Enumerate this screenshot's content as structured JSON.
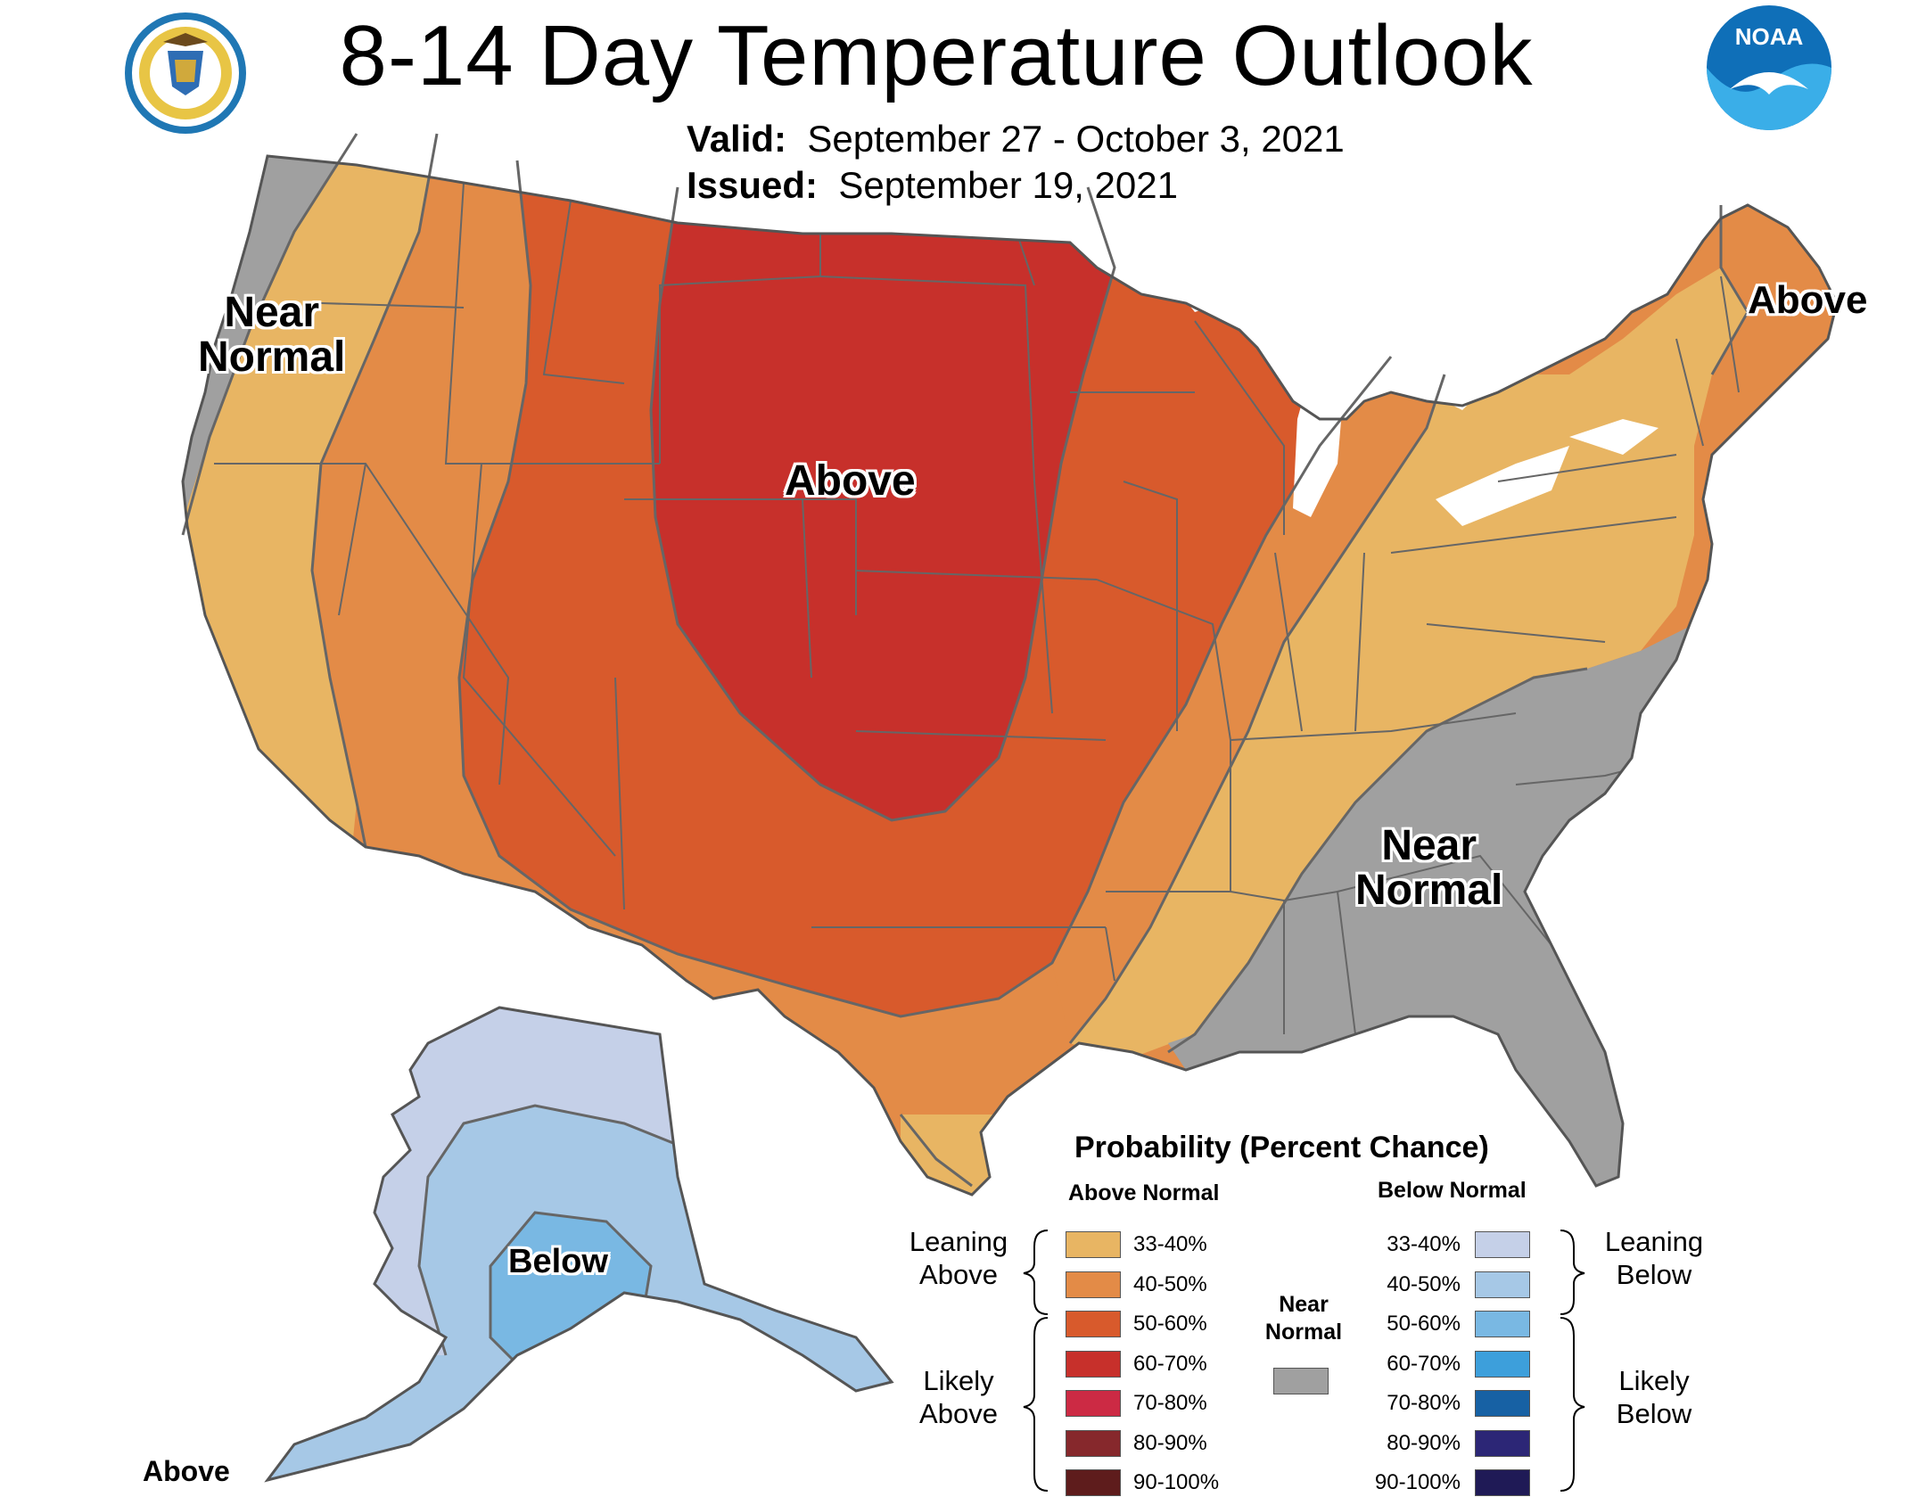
{
  "title": "8-14 Day Temperature Outlook",
  "valid_label": "Valid:",
  "valid_dates": "September 27 - October 3, 2021",
  "issued_label": "Issued:",
  "issued_date": "September 19, 2021",
  "logos": {
    "left": "Department of Commerce seal",
    "left_text": "DEPARTMENT OF COMMERCE • UNITED STATES OF AMERICA",
    "right": "NOAA logo",
    "right_text": "NOAA"
  },
  "regions": {
    "west_coast": "Near\nNormal",
    "central": "Above",
    "northeast": "Above",
    "southeast": "Near\nNormal",
    "alaska": "Below",
    "aleutians": "Above"
  },
  "colors": {
    "above_33_40": "#e8b563",
    "above_40_50": "#e38b47",
    "above_50_60": "#d85a2c",
    "above_60_70": "#c7302b",
    "above_70_80": "#cc2a44",
    "above_80_90": "#86282c",
    "above_90_100": "#5e1c1c",
    "near_normal": "#a0a0a0",
    "below_33_40": "#c5d0e8",
    "below_40_50": "#a6c8e6",
    "below_50_60": "#79b8e3",
    "below_60_70": "#3d9fdb",
    "below_70_80": "#1761a4",
    "below_80_90": "#2c2676",
    "below_90_100": "#1f1a56",
    "boundary": "#666666"
  },
  "legend": {
    "title": "Probability (Percent Chance)",
    "above_header": "Above Normal",
    "below_header": "Below Normal",
    "near_normal": "Near\nNormal",
    "leaning_above": "Leaning\nAbove",
    "likely_above": "Likely\nAbove",
    "leaning_below": "Leaning\nBelow",
    "likely_below": "Likely\nBelow",
    "above_rows": [
      {
        "label": "33-40%",
        "color": "#e8b563"
      },
      {
        "label": "40-50%",
        "color": "#e38b47"
      },
      {
        "label": "50-60%",
        "color": "#d85a2c"
      },
      {
        "label": "60-70%",
        "color": "#c7302b"
      },
      {
        "label": "70-80%",
        "color": "#cc2a44"
      },
      {
        "label": "80-90%",
        "color": "#86282c"
      },
      {
        "label": "90-100%",
        "color": "#5e1c1c"
      }
    ],
    "below_rows": [
      {
        "label": "33-40%",
        "color": "#c5d0e8"
      },
      {
        "label": "40-50%",
        "color": "#a6c8e6"
      },
      {
        "label": "50-60%",
        "color": "#79b8e3"
      },
      {
        "label": "60-70%",
        "color": "#3d9fdb"
      },
      {
        "label": "70-80%",
        "color": "#1761a4"
      },
      {
        "label": "80-90%",
        "color": "#2c2676"
      },
      {
        "label": "90-100%",
        "color": "#1f1a56"
      }
    ]
  }
}
